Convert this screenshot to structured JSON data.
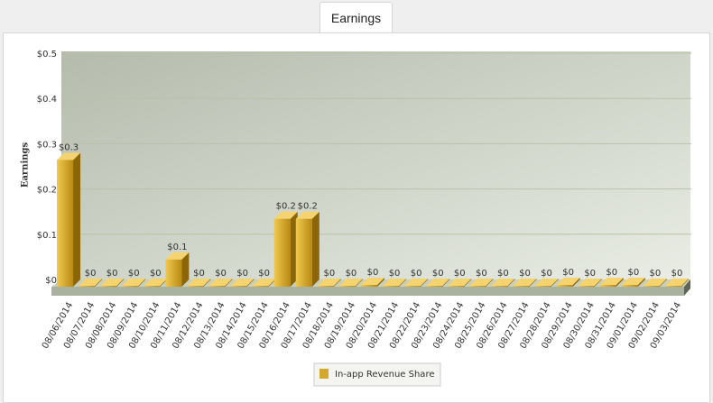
{
  "chart_data": {
    "type": "bar",
    "title": "Earnings",
    "y_label": "Earnings",
    "categories": [
      "08/06/2014",
      "08/07/2014",
      "08/08/2014",
      "08/09/2014",
      "08/10/2014",
      "08/11/2014",
      "08/12/2014",
      "08/13/2014",
      "08/14/2014",
      "08/15/2014",
      "08/16/2014",
      "08/17/2014",
      "08/18/2014",
      "08/19/2014",
      "08/20/2014",
      "08/21/2014",
      "08/22/2014",
      "08/23/2014",
      "08/24/2014",
      "08/25/2014",
      "08/26/2014",
      "08/27/2014",
      "08/28/2014",
      "08/29/2014",
      "08/30/2014",
      "08/31/2014",
      "09/01/2014",
      "09/02/2014",
      "09/03/2014"
    ],
    "series": [
      {
        "name": "In-app Revenue Share",
        "color": "#d4a82a",
        "values": [
          0.28,
          0,
          0.002,
          0,
          0,
          0.06,
          0,
          0,
          0,
          0,
          0.15,
          0.15,
          0,
          0,
          0.004,
          0,
          0,
          0,
          0,
          0,
          0,
          0,
          0,
          0.004,
          0,
          0.004,
          0.004,
          0,
          0
        ],
        "value_labels": [
          "$0.3",
          "$0",
          "$0",
          "$0",
          "$0",
          "$0.1",
          "$0",
          "$0",
          "$0",
          "$0",
          "$0.2",
          "$0.2",
          "$0",
          "$0",
          "$0",
          "$0",
          "$0",
          "$0",
          "$0",
          "$0",
          "$0",
          "$0",
          "$0",
          "$0",
          "$0",
          "$0",
          "$0",
          "$0",
          "$0"
        ]
      }
    ],
    "ylim": [
      0,
      0.5
    ],
    "yticks": [
      {
        "value": 0,
        "label": "$0"
      },
      {
        "value": 0.1,
        "label": "$0.1"
      },
      {
        "value": 0.2,
        "label": "$0.2"
      },
      {
        "value": 0.3,
        "label": "$0.3"
      },
      {
        "value": 0.4,
        "label": "$0.4"
      },
      {
        "value": 0.5,
        "label": "$0.5"
      }
    ],
    "grid": true
  }
}
